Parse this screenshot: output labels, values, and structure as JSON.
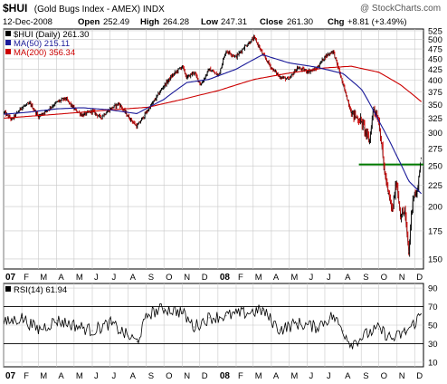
{
  "header": {
    "title": "$HUI",
    "subtitle": "(Gold Bugs Index - AMEX) INDX",
    "watermark": "@ StockCharts.com",
    "date": "12-Dec-2008",
    "open_label": "Open",
    "open_value": "252.49",
    "high_label": "High",
    "high_value": "264.28",
    "low_label": "Low",
    "low_value": "247.31",
    "close_label": "Close",
    "close_value": "261.30",
    "chg_label": "Chg",
    "chg_value": "+8.81 (+3.49%)"
  },
  "colors": {
    "price": "#000000",
    "down_bar": "#cc0000",
    "ma50": "#1a1a99",
    "ma200": "#cc0000",
    "support": "#007a00",
    "grid": "#c8c8c8",
    "rsi": "#000000"
  },
  "chart_data": [
    {
      "type": "line",
      "title": "$HUI (Gold Bugs Index - AMEX) INDX",
      "legend": [
        {
          "label": "$HUI (Daily) 261.30",
          "color": "#000000"
        },
        {
          "label": "MA(50) 215.11",
          "color": "#1a1a99"
        },
        {
          "label": "MA(200) 356.34",
          "color": "#cc0000"
        }
      ],
      "legend_position": "top-left",
      "y_scale": "log",
      "ylim": [
        142,
        530
      ],
      "y_ticks": [
        150,
        175,
        200,
        225,
        250,
        275,
        300,
        325,
        350,
        375,
        400,
        425,
        450,
        475,
        500,
        525
      ],
      "x_labels": [
        "07",
        "F",
        "M",
        "A",
        "M",
        "J",
        "J",
        "A",
        "S",
        "O",
        "N",
        "D",
        "08",
        "F",
        "M",
        "A",
        "M",
        "J",
        "J",
        "A",
        "S",
        "O",
        "N",
        "D"
      ],
      "grid": true,
      "support_level": 252,
      "series": [
        {
          "name": "$HUI (Daily)",
          "x": [
            "2007-01-02",
            "2007-01-15",
            "2007-02-01",
            "2007-02-15",
            "2007-03-01",
            "2007-03-15",
            "2007-04-02",
            "2007-04-16",
            "2007-05-01",
            "2007-05-15",
            "2007-06-01",
            "2007-06-15",
            "2007-07-02",
            "2007-07-16",
            "2007-08-01",
            "2007-08-16",
            "2007-09-04",
            "2007-09-17",
            "2007-10-01",
            "2007-10-15",
            "2007-11-01",
            "2007-11-09",
            "2007-11-21",
            "2007-12-03",
            "2007-12-17",
            "2008-01-02",
            "2008-01-15",
            "2008-02-01",
            "2008-02-15",
            "2008-03-03",
            "2008-03-17",
            "2008-04-01",
            "2008-04-15",
            "2008-05-01",
            "2008-05-15",
            "2008-06-02",
            "2008-06-16",
            "2008-07-01",
            "2008-07-15",
            "2008-08-01",
            "2008-08-15",
            "2008-09-02",
            "2008-09-15",
            "2008-09-22",
            "2008-10-01",
            "2008-10-10",
            "2008-10-17",
            "2008-10-24",
            "2008-10-31",
            "2008-11-07",
            "2008-11-14",
            "2008-11-21",
            "2008-11-28",
            "2008-12-05",
            "2008-12-12"
          ],
          "values": [
            335,
            322,
            345,
            352,
            328,
            338,
            355,
            362,
            342,
            330,
            338,
            326,
            342,
            352,
            328,
            310,
            340,
            362,
            388,
            410,
            432,
            405,
            418,
            390,
            425,
            410,
            470,
            455,
            480,
            505,
            462,
            428,
            408,
            402,
            428,
            420,
            425,
            455,
            470,
            390,
            335,
            318,
            285,
            345,
            320,
            245,
            215,
            195,
            230,
            190,
            195,
            155,
            212,
            215,
            261
          ]
        },
        {
          "name": "MA(50)",
          "x": [
            "2007-01-02",
            "2007-02-15",
            "2007-04-02",
            "2007-05-15",
            "2007-07-02",
            "2007-08-16",
            "2007-10-01",
            "2007-11-09",
            "2007-12-17",
            "2008-02-01",
            "2008-03-17",
            "2008-05-01",
            "2008-06-16",
            "2008-08-01",
            "2008-09-02",
            "2008-10-01",
            "2008-10-31",
            "2008-11-21",
            "2008-12-12"
          ],
          "values": [
            332,
            336,
            342,
            344,
            340,
            333,
            360,
            395,
            402,
            425,
            460,
            440,
            430,
            415,
            380,
            320,
            265,
            230,
            215
          ]
        },
        {
          "name": "MA(200)",
          "x": [
            "2007-01-02",
            "2007-04-02",
            "2007-07-02",
            "2007-09-04",
            "2007-11-01",
            "2008-01-02",
            "2008-03-03",
            "2008-05-01",
            "2008-07-01",
            "2008-08-15",
            "2008-10-01",
            "2008-11-07",
            "2008-12-12"
          ],
          "values": [
            325,
            332,
            340,
            345,
            360,
            378,
            402,
            416,
            428,
            432,
            418,
            390,
            356
          ]
        }
      ]
    },
    {
      "type": "line",
      "legend": [
        {
          "label": "RSI(14) 61.94",
          "color": "#000000"
        }
      ],
      "ylim": [
        5,
        95
      ],
      "y_ticks": [
        10,
        30,
        50,
        70,
        90
      ],
      "reference_lines": [
        30,
        70
      ],
      "x_labels": [
        "07",
        "F",
        "M",
        "A",
        "M",
        "J",
        "J",
        "A",
        "S",
        "O",
        "N",
        "D",
        "08",
        "F",
        "M",
        "A",
        "M",
        "J",
        "J",
        "A",
        "S",
        "O",
        "N",
        "D"
      ],
      "series": [
        {
          "name": "RSI(14)",
          "x": [
            "2007-01-02",
            "2007-02-01",
            "2007-03-01",
            "2007-04-02",
            "2007-05-01",
            "2007-06-01",
            "2007-07-02",
            "2007-08-01",
            "2007-08-16",
            "2007-09-04",
            "2007-10-01",
            "2007-11-01",
            "2007-11-21",
            "2007-12-17",
            "2008-01-15",
            "2008-02-15",
            "2008-03-17",
            "2008-04-15",
            "2008-05-15",
            "2008-06-16",
            "2008-07-15",
            "2008-08-01",
            "2008-08-15",
            "2008-09-15",
            "2008-10-01",
            "2008-10-24",
            "2008-11-14",
            "2008-11-28",
            "2008-12-12"
          ],
          "values": [
            52,
            58,
            45,
            55,
            50,
            44,
            52,
            38,
            32,
            62,
            68,
            64,
            48,
            58,
            60,
            63,
            66,
            45,
            52,
            48,
            60,
            44,
            30,
            42,
            46,
            35,
            42,
            50,
            62
          ]
        }
      ]
    }
  ]
}
